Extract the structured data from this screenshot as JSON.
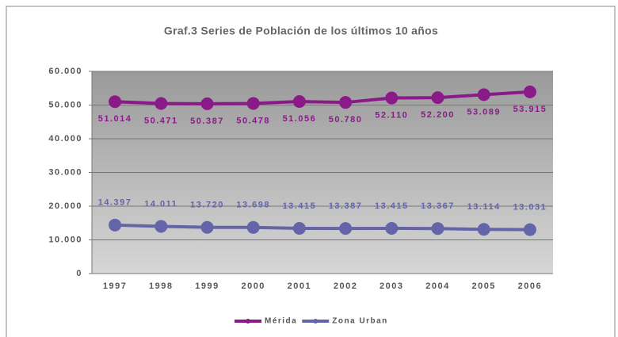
{
  "chart_data": {
    "type": "line",
    "title": "Graf.3 Series de Población de los últimos 10 años",
    "categories": [
      "1997",
      "1998",
      "1999",
      "2000",
      "2001",
      "2002",
      "2003",
      "2004",
      "2005",
      "2006"
    ],
    "series": [
      {
        "name": "Mérida",
        "color": "#8b1a89",
        "values": [
          51014,
          50471,
          50387,
          50478,
          51056,
          50780,
          52110,
          52200,
          53089,
          53915
        ],
        "value_labels": [
          "51.014",
          "50.471",
          "50.387",
          "50.478",
          "51.056",
          "50.780",
          "52.110",
          "52.200",
          "53.089",
          "53.915"
        ]
      },
      {
        "name": "Zona Urban",
        "color": "#6464a8",
        "values": [
          14397,
          14011,
          13720,
          13698,
          13415,
          13387,
          13415,
          13367,
          13114,
          13031
        ],
        "value_labels": [
          "14.397",
          "14.011",
          "13.720",
          "13.698",
          "13.415",
          "13.387",
          "13.415",
          "13.367",
          "13.114",
          "13.031"
        ]
      }
    ],
    "ylim": [
      0,
      60000
    ],
    "yticks": [
      0,
      {
        "value": 10000,
        "label": "10.000"
      },
      {
        "value": 20000,
        "label": "20.000"
      },
      {
        "value": 30000,
        "label": "30.000"
      },
      {
        "value": 40000,
        "label": "40.000"
      },
      {
        "value": 50000,
        "label": "50.000"
      },
      {
        "value": 60000,
        "label": "60.000"
      }
    ],
    "grid": true,
    "legend": "bottom"
  }
}
